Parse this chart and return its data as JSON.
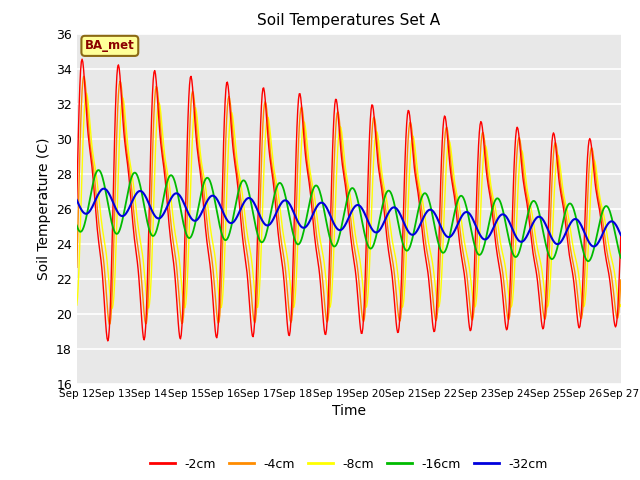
{
  "title": "Soil Temperatures Set A",
  "xlabel": "Time",
  "ylabel": "Soil Temperature (C)",
  "ylim": [
    16,
    36
  ],
  "yticks": [
    16,
    18,
    20,
    22,
    24,
    26,
    28,
    30,
    32,
    34,
    36
  ],
  "legend_labels": [
    "-2cm",
    "-4cm",
    "-8cm",
    "-16cm",
    "-32cm"
  ],
  "legend_colors": [
    "#ff0000",
    "#ff8c00",
    "#ffff00",
    "#00bb00",
    "#0000dd"
  ],
  "annotation_text": "BA_met",
  "annotation_color": "#8B0000",
  "annotation_bg": "#ffff99",
  "background_color": "#e8e8e8",
  "grid_color": "#ffffff",
  "xtick_labels": [
    "Sep 12",
    "Sep 13",
    "Sep 14",
    "Sep 15",
    "Sep 16",
    "Sep 17",
    "Sep 18",
    "Sep 19",
    "Sep 20",
    "Sep 21",
    "Sep 22",
    "Sep 23",
    "Sep 24",
    "Sep 25",
    "Sep 26",
    "Sep 27"
  ],
  "num_days": 15,
  "points_per_day": 48
}
